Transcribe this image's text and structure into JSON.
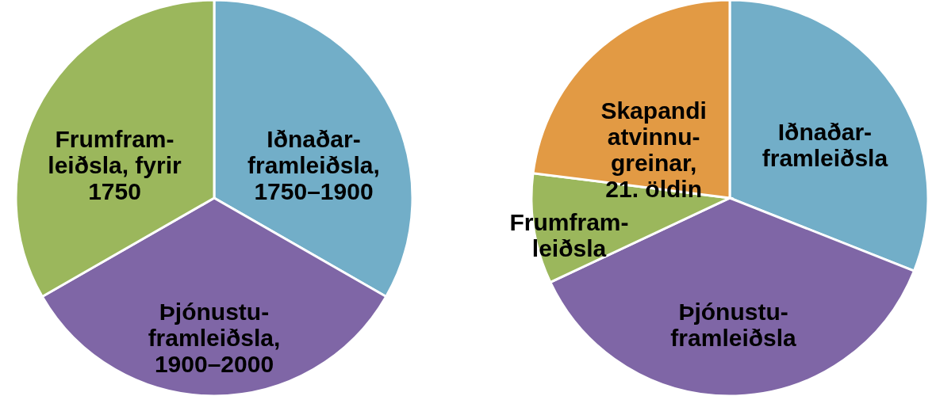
{
  "chart_data": [
    {
      "type": "pie",
      "categories": [
        "Iðnaðar-\nframleiðsla,\n1750–1900",
        "Þjónustu-\nframleiðsla,\n1900–2000",
        "Frumfram-\nleiðsla, fyrir\n1750"
      ],
      "values": [
        33.3,
        33.4,
        33.3
      ],
      "colors": [
        "#72aec8",
        "#7f66a6",
        "#9bb75c"
      ]
    },
    {
      "type": "pie",
      "categories": [
        "Iðnaðar-\nframleiðsla",
        "Þjónustu-\nframleiðsla",
        "Frumfram-\nleiðsla",
        "Skapandi\natvinnu-\ngreinar,\n21. öldin"
      ],
      "values": [
        31,
        37,
        9,
        23
      ],
      "colors": [
        "#72aec8",
        "#7f66a6",
        "#9bb75c",
        "#e29a44"
      ]
    }
  ]
}
